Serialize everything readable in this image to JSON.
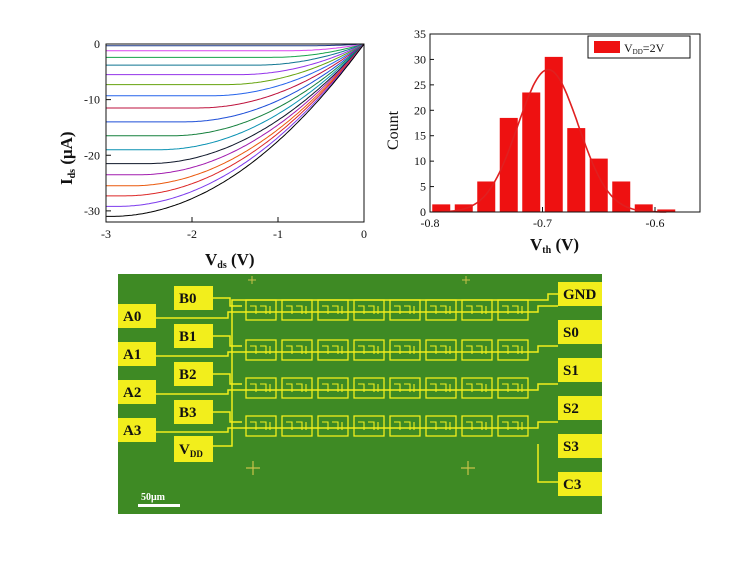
{
  "chart_data": [
    {
      "type": "line",
      "xlabel": "V",
      "xlabel_sub": "ds",
      "xlabel_unit": " (V)",
      "ylabel": "I",
      "ylabel_sub": "ds",
      "ylabel_unit": " (μA)",
      "xlim": [
        -3,
        0
      ],
      "ylim": [
        -32,
        0
      ],
      "x_ticks": [
        "-3",
        "-2",
        "-1",
        "0"
      ],
      "y_ticks": [
        "0",
        "-10",
        "-20",
        "-30"
      ],
      "series": [
        {
          "sat": -0.3,
          "color": "#1e3a8a"
        },
        {
          "sat": -1.2,
          "color": "#d946ef"
        },
        {
          "sat": -2.4,
          "color": "#16a34a"
        },
        {
          "sat": -3.8,
          "color": "#0e7490"
        },
        {
          "sat": -5.5,
          "color": "#9333ea"
        },
        {
          "sat": -7.3,
          "color": "#65a30d"
        },
        {
          "sat": -9.3,
          "color": "#2563eb"
        },
        {
          "sat": -11.5,
          "color": "#be123c"
        },
        {
          "sat": -14.0,
          "color": "#1d4ed8"
        },
        {
          "sat": -16.5,
          "color": "#15803d"
        },
        {
          "sat": -19.0,
          "color": "#0891b2"
        },
        {
          "sat": -21.5,
          "color": "#0f172a"
        },
        {
          "sat": -23.5,
          "color": "#a21caf"
        },
        {
          "sat": -25.5,
          "color": "#ea580c"
        },
        {
          "sat": -27.3,
          "color": "#dc2626"
        },
        {
          "sat": -29.2,
          "color": "#7c3aed"
        },
        {
          "sat": -31.0,
          "color": "#000000"
        }
      ]
    },
    {
      "type": "bar",
      "xlabel": "V",
      "xlabel_sub": "th",
      "xlabel_unit": " (V)",
      "ylabel": "Count",
      "xlim": [
        -0.8,
        -0.56
      ],
      "ylim": [
        0,
        35
      ],
      "x_ticks": [
        "-0.8",
        "-0.7",
        "-0.6"
      ],
      "x_tick_values": [
        -0.8,
        -0.7,
        -0.6
      ],
      "y_ticks": [
        "0",
        "5",
        "10",
        "15",
        "20",
        "25",
        "30",
        "35"
      ],
      "bin_centers": [
        -0.79,
        -0.77,
        -0.75,
        -0.73,
        -0.71,
        -0.69,
        -0.67,
        -0.65,
        -0.63,
        -0.61,
        -0.59
      ],
      "values": [
        1.5,
        1.5,
        6,
        18.5,
        23.5,
        30.5,
        16.5,
        10.5,
        6,
        1.5,
        0.5
      ],
      "bar_color": "#ee1111",
      "legend_text": "V",
      "legend_sub": "DD",
      "legend_suffix": "=2V",
      "legend_position": "top-right",
      "fit": {
        "type": "gaussian",
        "mean": -0.695,
        "sigma": 0.027,
        "peak": 28
      }
    }
  ],
  "chip": {
    "left_pads": [
      "A0",
      "A1",
      "A2",
      "A3"
    ],
    "inner_pads": [
      "B0",
      "B1",
      "B2",
      "B3"
    ],
    "vdd_pad": "V",
    "vdd_sub": "DD",
    "right_pads": [
      "GND",
      "S0",
      "S1",
      "S2",
      "S3",
      "C3"
    ],
    "scale_bar": "50μm",
    "background_color": "#3e8a24",
    "pad_color": "#f2ee1c"
  }
}
